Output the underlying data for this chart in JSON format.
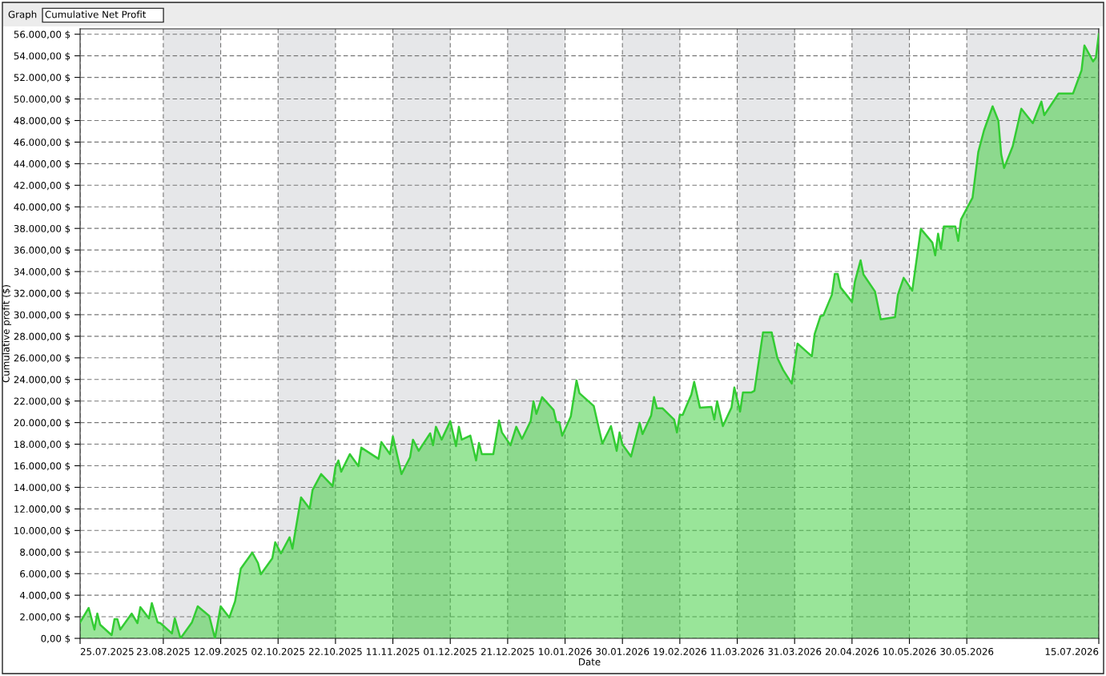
{
  "chart_data": {
    "type": "area",
    "title": "Cumulative Net Profit",
    "annotations": [
      "Graph"
    ],
    "xlabel": "Date",
    "ylabel": "Cumulative profit ($)",
    "series": [
      {
        "color": "#33cc33",
        "x": [
          "2025-07-25",
          "2025-07-28",
          "2025-07-30",
          "2025-07-31",
          "2025-08-01",
          "2025-08-05",
          "2025-08-06",
          "2025-08-07",
          "2025-08-08",
          "2025-08-12",
          "2025-08-14",
          "2025-08-15",
          "2025-08-18",
          "2025-08-19",
          "2025-08-21",
          "2025-08-22",
          "2025-08-26",
          "2025-08-27",
          "2025-08-29",
          "2025-09-02",
          "2025-09-04",
          "2025-09-08",
          "2025-09-10",
          "2025-09-12",
          "2025-09-15",
          "2025-09-17",
          "2025-09-19",
          "2025-09-23",
          "2025-09-25",
          "2025-09-26",
          "2025-09-30",
          "2025-10-01",
          "2025-10-03",
          "2025-10-06",
          "2025-10-07",
          "2025-10-10",
          "2025-10-13",
          "2025-10-14",
          "2025-10-17",
          "2025-10-21",
          "2025-10-22",
          "2025-10-23",
          "2025-10-24",
          "2025-10-27",
          "2025-10-30",
          "2025-10-31",
          "2025-11-06",
          "2025-11-07",
          "2025-11-10",
          "2025-11-11",
          "2025-11-14",
          "2025-11-17",
          "2025-11-18",
          "2025-11-20",
          "2025-11-24",
          "2025-11-25",
          "2025-11-26",
          "2025-11-28",
          "2025-12-01",
          "2025-12-03",
          "2025-12-04",
          "2025-12-05",
          "2025-12-08",
          "2025-12-10",
          "2025-12-11",
          "2025-12-12",
          "2025-12-16",
          "2025-12-18",
          "2025-12-19",
          "2025-12-22",
          "2025-12-24",
          "2025-12-26",
          "2025-12-29",
          "2025-12-30",
          "2025-12-31",
          "2026-01-02",
          "2026-01-06",
          "2026-01-07",
          "2026-01-08",
          "2026-01-09",
          "2026-01-12",
          "2026-01-14",
          "2026-01-15",
          "2026-01-20",
          "2026-01-23",
          "2026-01-26",
          "2026-01-28",
          "2026-01-29",
          "2026-01-30",
          "2026-02-02",
          "2026-02-05",
          "2026-02-06",
          "2026-02-09",
          "2026-02-10",
          "2026-02-11",
          "2026-02-13",
          "2026-02-17",
          "2026-02-18",
          "2026-02-19",
          "2026-02-20",
          "2026-02-22",
          "2026-02-23",
          "2026-02-24",
          "2026-02-26",
          "2026-03-02",
          "2026-03-03",
          "2026-03-04",
          "2026-03-06",
          "2026-03-09",
          "2026-03-10",
          "2026-03-12",
          "2026-03-13",
          "2026-03-16",
          "2026-03-17",
          "2026-03-20",
          "2026-03-23",
          "2026-03-25",
          "2026-03-27",
          "2026-03-30",
          "2026-04-01",
          "2026-04-06",
          "2026-04-07",
          "2026-04-09",
          "2026-04-10",
          "2026-04-13",
          "2026-04-14",
          "2026-04-15",
          "2026-04-16",
          "2026-04-20",
          "2026-04-21",
          "2026-04-23",
          "2026-04-24",
          "2026-04-28",
          "2026-04-30",
          "2026-05-05",
          "2026-05-06",
          "2026-05-08",
          "2026-05-11",
          "2026-05-14",
          "2026-05-18",
          "2026-05-19",
          "2026-05-20",
          "2026-05-21",
          "2026-05-22",
          "2026-05-26",
          "2026-05-27",
          "2026-05-28",
          "2026-06-01",
          "2026-06-03",
          "2026-06-05",
          "2026-06-08",
          "2026-06-10",
          "2026-06-11",
          "2026-06-12",
          "2026-06-15",
          "2026-06-18",
          "2026-06-22",
          "2026-06-25",
          "2026-06-26",
          "2026-07-01",
          "2026-07-06",
          "2026-07-09",
          "2026-07-10",
          "2026-07-13",
          "2026-07-14",
          "2026-07-15"
        ],
        "values": [
          1490,
          2820,
          820,
          2300,
          1260,
          300,
          1780,
          1780,
          820,
          2300,
          1410,
          2900,
          1860,
          3270,
          1490,
          1410,
          450,
          1860,
          0,
          1490,
          2970,
          2080,
          0,
          2970,
          1930,
          3420,
          6460,
          7950,
          6980,
          5940,
          7430,
          8910,
          7870,
          9360,
          8320,
          13070,
          12030,
          13740,
          15230,
          14110,
          15890,
          16490,
          15450,
          17080,
          15970,
          17680,
          16640,
          18200,
          17080,
          18720,
          15230,
          16790,
          18420,
          17380,
          19010,
          17900,
          19610,
          18420,
          20130,
          17820,
          19610,
          18420,
          18790,
          16490,
          18120,
          17080,
          17080,
          20200,
          19090,
          17900,
          19610,
          18490,
          20130,
          21980,
          20800,
          22360,
          21170,
          20050,
          20050,
          18790,
          20570,
          23910,
          22730,
          21540,
          18050,
          19680,
          17380,
          19090,
          17970,
          16860,
          19980,
          18940,
          20650,
          22360,
          21320,
          21320,
          20280,
          19090,
          20720,
          20720,
          21980,
          22580,
          23770,
          21390,
          21460,
          20280,
          21980,
          19680,
          21390,
          23250,
          21020,
          22800,
          22800,
          22950,
          28370,
          28370,
          25990,
          24880,
          23620,
          27330,
          26140,
          28220,
          29860,
          29930,
          31860,
          33790,
          33790,
          32530,
          31190,
          33050,
          35050,
          33720,
          32160,
          29560,
          29780,
          31860,
          33420,
          32230,
          37950,
          36690,
          35500,
          37510,
          36100,
          38180,
          38180,
          36840,
          38840,
          40850,
          45080,
          47090,
          49320,
          47980,
          44860,
          43600,
          45600,
          49090,
          47760,
          49760,
          48500,
          50500,
          50500,
          52660,
          54960,
          53480,
          53850,
          56000
        ]
      }
    ],
    "xlim": [
      "2025-07-25",
      "2026-07-15"
    ],
    "xticks": [
      {
        "value": "2025-07-25",
        "label": "25.07.2025"
      },
      {
        "value": "2025-08-23",
        "label": "23.08.2025"
      },
      {
        "value": "2025-09-12",
        "label": "12.09.2025"
      },
      {
        "value": "2025-10-02",
        "label": "02.10.2025"
      },
      {
        "value": "2025-10-22",
        "label": "22.10.2025"
      },
      {
        "value": "2025-11-11",
        "label": "11.11.2025"
      },
      {
        "value": "2025-12-01",
        "label": "01.12.2025"
      },
      {
        "value": "2025-12-21",
        "label": "21.12.2025"
      },
      {
        "value": "2026-01-10",
        "label": "10.01.2026"
      },
      {
        "value": "2026-01-30",
        "label": "30.01.2026"
      },
      {
        "value": "2026-02-19",
        "label": "19.02.2026"
      },
      {
        "value": "2026-03-11",
        "label": "11.03.2026"
      },
      {
        "value": "2026-03-31",
        "label": "31.03.2026"
      },
      {
        "value": "2026-04-20",
        "label": "20.04.2026"
      },
      {
        "value": "2026-05-10",
        "label": "10.05.2026"
      },
      {
        "value": "2026-05-30",
        "label": "30.05.2026"
      },
      {
        "value": "2026-07-15",
        "label": "15.07.2026"
      }
    ],
    "ylim": [
      0,
      56500
    ],
    "yticks": [
      {
        "value": 0,
        "label": "0,00 $"
      },
      {
        "value": 2000,
        "label": "2.000,00 $"
      },
      {
        "value": 4000,
        "label": "4.000,00 $"
      },
      {
        "value": 6000,
        "label": "6.000,00 $"
      },
      {
        "value": 8000,
        "label": "8.000,00 $"
      },
      {
        "value": 10000,
        "label": "10.000,00 $"
      },
      {
        "value": 12000,
        "label": "12.000,00 $"
      },
      {
        "value": 14000,
        "label": "14.000,00 $"
      },
      {
        "value": 16000,
        "label": "16.000,00 $"
      },
      {
        "value": 18000,
        "label": "18.000,00 $"
      },
      {
        "value": 20000,
        "label": "20.000,00 $"
      },
      {
        "value": 22000,
        "label": "22.000,00 $"
      },
      {
        "value": 24000,
        "label": "24.000,00 $"
      },
      {
        "value": 26000,
        "label": "26.000,00 $"
      },
      {
        "value": 28000,
        "label": "28.000,00 $"
      },
      {
        "value": 30000,
        "label": "30.000,00 $"
      },
      {
        "value": 32000,
        "label": "32.000,00 $"
      },
      {
        "value": 34000,
        "label": "34.000,00 $"
      },
      {
        "value": 36000,
        "label": "36.000,00 $"
      },
      {
        "value": 38000,
        "label": "38.000,00 $"
      },
      {
        "value": 40000,
        "label": "40.000,00 $"
      },
      {
        "value": 42000,
        "label": "42.000,00 $"
      },
      {
        "value": 44000,
        "label": "44.000,00 $"
      },
      {
        "value": 46000,
        "label": "46.000,00 $"
      },
      {
        "value": 48000,
        "label": "48.000,00 $"
      },
      {
        "value": 50000,
        "label": "50.000,00 $"
      },
      {
        "value": 52000,
        "label": "52.000,00 $"
      },
      {
        "value": 54000,
        "label": "54.000,00 $"
      },
      {
        "value": 56000,
        "label": "56.000,00 $"
      }
    ],
    "bands": [
      {
        "axis": "x",
        "from": "2025-08-23",
        "to": "2025-09-12",
        "color": "#e6e7e9"
      },
      {
        "axis": "x",
        "from": "2025-10-02",
        "to": "2025-10-22",
        "color": "#e6e7e9"
      },
      {
        "axis": "x",
        "from": "2025-11-11",
        "to": "2025-12-01",
        "color": "#e6e7e9"
      },
      {
        "axis": "x",
        "from": "2025-12-21",
        "to": "2026-01-10",
        "color": "#e6e7e9"
      },
      {
        "axis": "x",
        "from": "2026-01-30",
        "to": "2026-02-19",
        "color": "#e6e7e9"
      },
      {
        "axis": "x",
        "from": "2026-03-11",
        "to": "2026-03-31",
        "color": "#e6e7e9"
      },
      {
        "axis": "x",
        "from": "2026-04-20",
        "to": "2026-05-10",
        "color": "#e6e7e9"
      },
      {
        "axis": "x",
        "from": "2026-05-30",
        "to": "2026-07-15",
        "color": "#e6e7e9"
      }
    ],
    "grid": true,
    "line_style": "solid",
    "marker": "none"
  }
}
